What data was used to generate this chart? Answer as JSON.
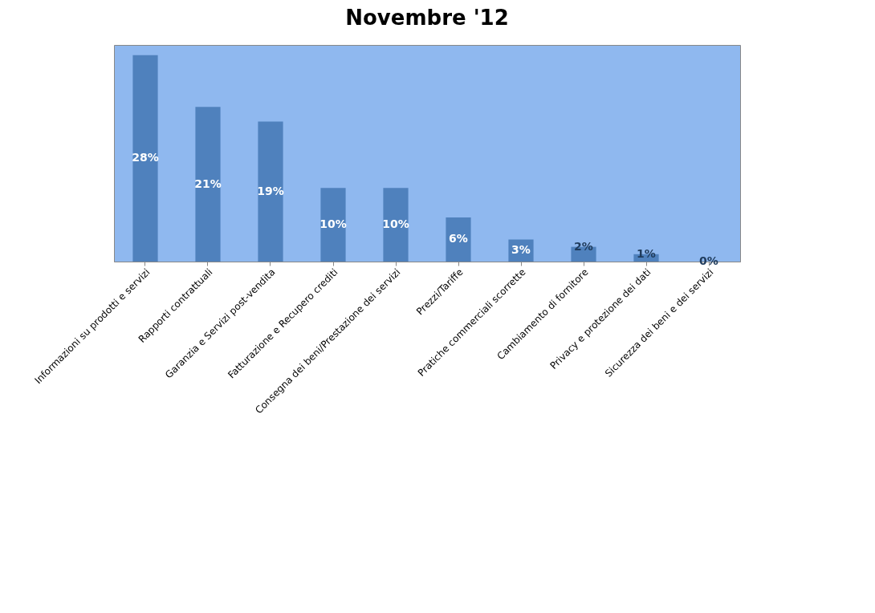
{
  "chart_data": {
    "type": "bar",
    "title": "Novembre '12",
    "categories": [
      "Informazioni su prodotti e servizi",
      "Rapporti contrattuali",
      "Garanzia e Servizi post-vendita",
      "Fatturazione e Recupero crediti",
      "Consegna dei beni/Prestazione dei servizi",
      "Prezzi/Tariffe",
      "Pratiche commerciali scorrette",
      "Cambiamento di fornitore",
      "Privacy e protezione dei dati",
      "Sicurezza dei beni e dei servizi"
    ],
    "values": [
      28,
      21,
      19,
      10,
      10,
      6,
      3,
      2,
      1,
      0
    ],
    "value_labels": [
      "28%",
      "21%",
      "19%",
      "10%",
      "10%",
      "6%",
      "3%",
      "2%",
      "1%",
      "0%"
    ],
    "color": "#4f81bd",
    "tick_labels": "x",
    "grid": false
  }
}
